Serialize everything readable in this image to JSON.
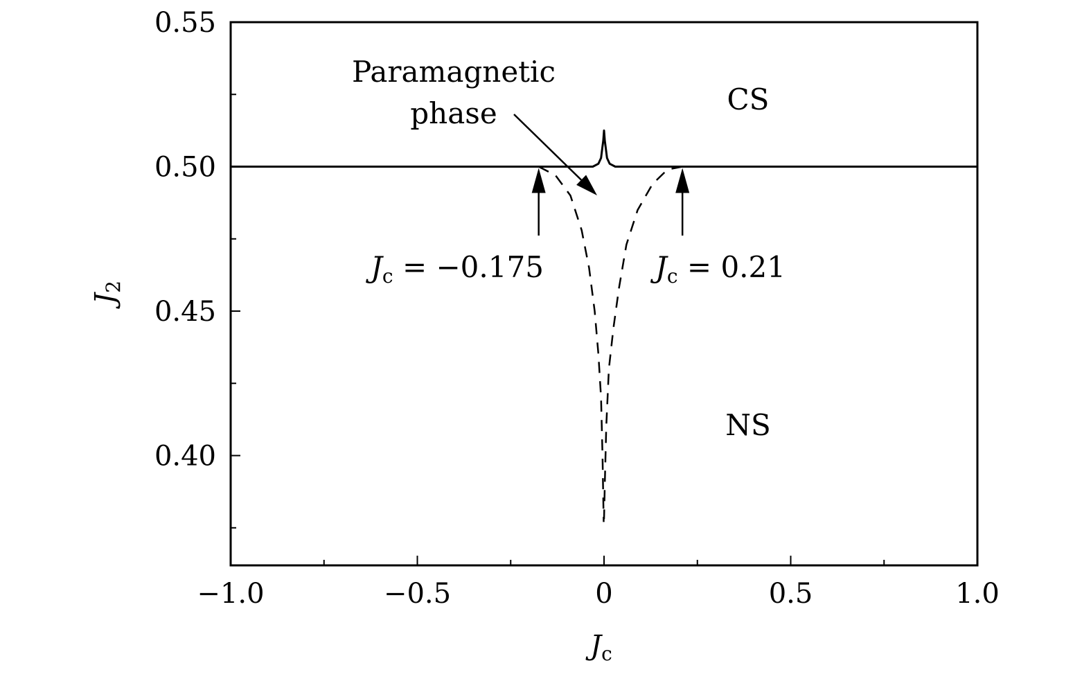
{
  "chart_data": {
    "type": "line",
    "title": "",
    "xlabel_main": "J",
    "xlabel_sub": "c",
    "ylabel_main": "J",
    "ylabel_sub": "2",
    "xlim": [
      -1.0,
      1.0
    ],
    "ylim": [
      0.362,
      0.55
    ],
    "x_ticks": [
      -1.0,
      -0.5,
      0,
      0.5,
      1.0
    ],
    "x_tick_labels": [
      "−1.0",
      "−0.5",
      "0",
      "0.5",
      "1.0"
    ],
    "x_minor_ticks": [
      -0.75,
      -0.25,
      0.25,
      0.75
    ],
    "y_ticks": [
      0.55,
      0.5,
      0.45,
      0.4
    ],
    "y_tick_labels": [
      "0.55",
      "0.50",
      "0.45",
      "0.40"
    ],
    "y_minor_ticks": [
      0.525,
      0.475,
      0.425,
      0.375
    ],
    "series": [
      {
        "name": "CS-NS boundary",
        "style": "solid",
        "x": [
          -1.0,
          -0.03,
          -0.015,
          -0.008,
          -0.004,
          -0.002,
          0,
          0.002,
          0.004,
          0.008,
          0.015,
          0.03,
          1.0
        ],
        "y": [
          0.5,
          0.5,
          0.501,
          0.503,
          0.507,
          0.509,
          0.5125,
          0.509,
          0.507,
          0.503,
          0.501,
          0.5,
          0.5
        ]
      },
      {
        "name": "paramagnetic boundary left",
        "style": "dashed",
        "x": [
          -0.175,
          -0.13,
          -0.09,
          -0.06,
          -0.04,
          -0.025,
          -0.015,
          -0.008,
          -0.004,
          -0.001
        ],
        "y": [
          0.5,
          0.497,
          0.49,
          0.478,
          0.465,
          0.45,
          0.435,
          0.42,
          0.4,
          0.377
        ]
      },
      {
        "name": "paramagnetic boundary right",
        "style": "dashed",
        "x": [
          0.21,
          0.17,
          0.13,
          0.09,
          0.06,
          0.04,
          0.025,
          0.013,
          0.006,
          0.002,
          0.0
        ],
        "y": [
          0.5,
          0.499,
          0.494,
          0.485,
          0.473,
          0.458,
          0.444,
          0.43,
          0.41,
          0.39,
          0.378
        ]
      }
    ],
    "annotations": {
      "cs": "CS",
      "ns": "NS",
      "para_line1": "Paramagnetic",
      "para_line2": "phase",
      "left_j": "J",
      "left_sub": "c",
      "left_rest": " = −0.175",
      "right_j": "J",
      "right_sub": "c",
      "right_rest": " = 0.21"
    }
  }
}
